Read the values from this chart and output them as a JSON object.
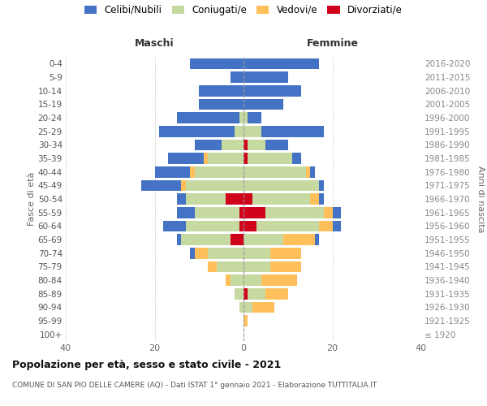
{
  "age_groups": [
    "100+",
    "95-99",
    "90-94",
    "85-89",
    "80-84",
    "75-79",
    "70-74",
    "65-69",
    "60-64",
    "55-59",
    "50-54",
    "45-49",
    "40-44",
    "35-39",
    "30-34",
    "25-29",
    "20-24",
    "15-19",
    "10-14",
    "5-9",
    "0-4"
  ],
  "birth_years": [
    "≤ 1920",
    "1921-1925",
    "1926-1930",
    "1931-1935",
    "1936-1940",
    "1941-1945",
    "1946-1950",
    "1951-1955",
    "1956-1960",
    "1961-1965",
    "1966-1970",
    "1971-1975",
    "1976-1980",
    "1981-1985",
    "1986-1990",
    "1991-1995",
    "1996-2000",
    "2001-2005",
    "2006-2010",
    "2011-2015",
    "2016-2020"
  ],
  "males": {
    "celibi": [
      0,
      0,
      0,
      0,
      0,
      0,
      1,
      1,
      5,
      4,
      2,
      9,
      8,
      8,
      6,
      17,
      14,
      10,
      10,
      3,
      12
    ],
    "coniugati": [
      0,
      0,
      1,
      2,
      3,
      6,
      8,
      11,
      12,
      10,
      9,
      13,
      11,
      8,
      5,
      2,
      1,
      0,
      0,
      0,
      0
    ],
    "vedovi": [
      0,
      0,
      0,
      0,
      1,
      2,
      3,
      0,
      0,
      0,
      0,
      1,
      1,
      1,
      0,
      0,
      0,
      0,
      0,
      0,
      0
    ],
    "divorziati": [
      0,
      0,
      0,
      0,
      0,
      0,
      0,
      3,
      1,
      1,
      4,
      0,
      0,
      0,
      0,
      0,
      0,
      0,
      0,
      0,
      0
    ]
  },
  "females": {
    "nubili": [
      0,
      0,
      0,
      0,
      0,
      0,
      0,
      1,
      2,
      2,
      1,
      1,
      1,
      2,
      5,
      14,
      3,
      9,
      13,
      10,
      17
    ],
    "coniugate": [
      0,
      0,
      2,
      4,
      4,
      6,
      6,
      9,
      14,
      13,
      13,
      17,
      14,
      10,
      4,
      4,
      1,
      0,
      0,
      0,
      0
    ],
    "vedove": [
      0,
      1,
      5,
      5,
      8,
      7,
      7,
      7,
      3,
      2,
      2,
      0,
      1,
      0,
      0,
      0,
      0,
      0,
      0,
      0,
      0
    ],
    "divorziate": [
      0,
      0,
      0,
      1,
      0,
      0,
      0,
      0,
      3,
      5,
      2,
      0,
      0,
      1,
      1,
      0,
      0,
      0,
      0,
      0,
      0
    ]
  },
  "colors": {
    "celibi_nubili": "#4472c4",
    "coniugati": "#c5d9a0",
    "vedovi": "#ffc05c",
    "divorziati": "#d0021b"
  },
  "xlim": 40,
  "title": "Popolazione per età, sesso e stato civile - 2021",
  "subtitle": "COMUNE DI SAN PIO DELLE CAMERE (AQ) - Dati ISTAT 1° gennaio 2021 - Elaborazione TUTTITALIA.IT",
  "ylabel_left": "Fasce di età",
  "ylabel_right": "Anni di nascita",
  "xlabel_maschi": "Maschi",
  "xlabel_femmine": "Femmine",
  "bg_color": "#ffffff",
  "grid_color": "#cccccc"
}
